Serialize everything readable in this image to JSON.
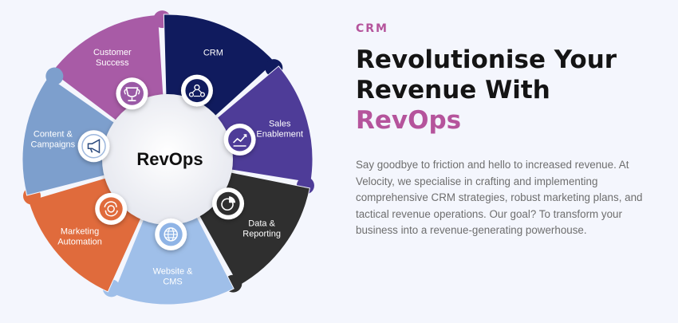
{
  "colors": {
    "accent": "#b5549c",
    "background": "#f4f6fd",
    "heading": "#141414",
    "body": "#6e6e6e"
  },
  "wheel": {
    "center_label": "RevOps",
    "segments": [
      {
        "id": "customer-success",
        "lines": [
          "Customer",
          "Success"
        ],
        "color": "#a85ba6",
        "icon": "trophy-icon",
        "icon_bg": "#9a5aa6"
      },
      {
        "id": "crm",
        "lines": [
          "CRM"
        ],
        "color": "#101b5e",
        "icon": "people-network-icon",
        "icon_bg": "#101b5e"
      },
      {
        "id": "sales-enablement",
        "lines": [
          "Sales",
          "Enablement"
        ],
        "color": "#4e3c98",
        "icon": "handshake-chart-icon",
        "icon_bg": "#4e3c98"
      },
      {
        "id": "data-reporting",
        "lines": [
          "Data &",
          "Reporting"
        ],
        "color": "#2f2f2f",
        "icon": "pie-chart-icon",
        "icon_bg": "#2f2f2f"
      },
      {
        "id": "website-cms",
        "lines": [
          "Website &",
          "CMS"
        ],
        "color": "#9fbfe9",
        "icon": "globe-icon",
        "icon_bg": "#8fb4e6"
      },
      {
        "id": "marketing-automation",
        "lines": [
          "Marketing",
          "Automation"
        ],
        "color": "#e06b3c",
        "icon": "gear-cycle-icon",
        "icon_bg": "#e06b3c"
      },
      {
        "id": "content-campaigns",
        "lines": [
          "Content &",
          "Campaigns"
        ],
        "color": "#7d9fcd",
        "icon": "megaphone-icon",
        "icon_bg": "#6f95c8"
      }
    ]
  },
  "content": {
    "eyebrow": "CRM",
    "headline_line1": "Revolutionise Your",
    "headline_line2_prefix": "Revenue With ",
    "headline_accent": "RevOps",
    "body": "Say goodbye to friction and hello to increased revenue. At Velocity, we specialise in crafting and implementing comprehensive CRM strategies, robust marketing plans, and tactical revenue operations. Our goal? To transform your business into a revenue-generating powerhouse."
  }
}
